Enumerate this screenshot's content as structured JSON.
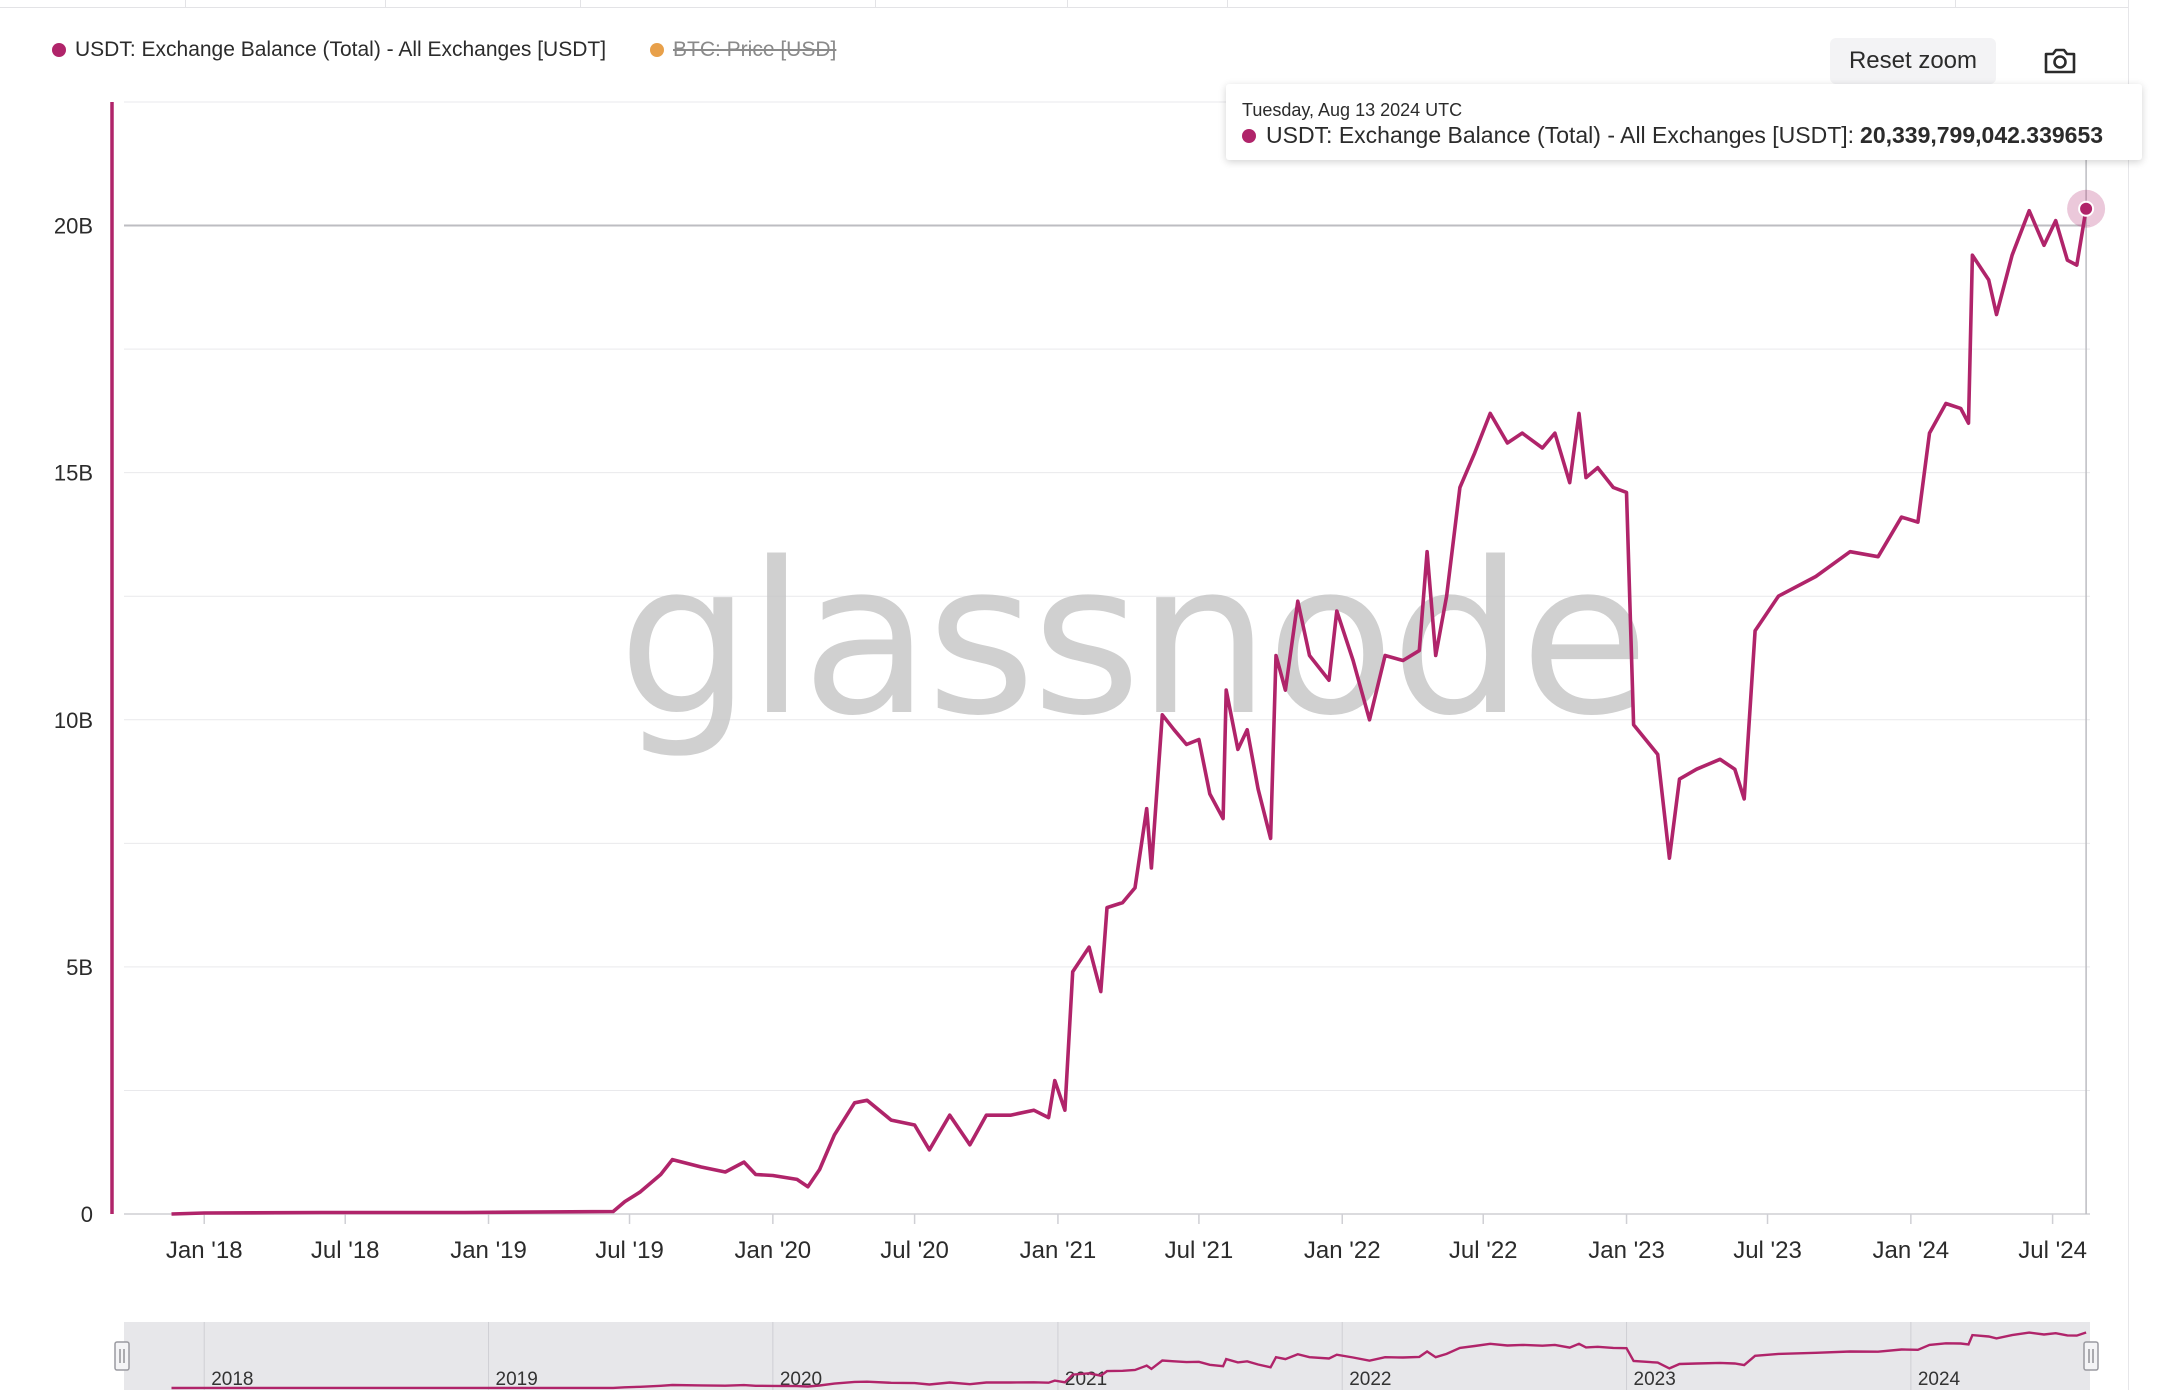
{
  "colors": {
    "usdt": "#b0246a",
    "btc": "#e8a04a",
    "grid": "#e9e9ec",
    "axis": "#cfcfd4",
    "navigator_bg": "#e7e7ea"
  },
  "legend": {
    "series": [
      {
        "name": "USDT: Exchange Balance (Total) - All Exchanges [USDT]",
        "active": true
      },
      {
        "name": "BTC: Price [USD]",
        "active": false
      }
    ]
  },
  "toolbar": {
    "reset_zoom_label": "Reset zoom",
    "camera_icon": "camera-icon"
  },
  "watermark": "glassnode",
  "tooltip": {
    "date": "Tuesday, Aug 13 2024 UTC",
    "series_label": "USDT: Exchange Balance (Total) - All Exchanges [USDT]:",
    "value": "20,339,799,042.339653"
  },
  "chart_data": {
    "type": "line",
    "series": [
      {
        "name": "USDT: Exchange Balance (Total) - All Exchanges [USDT]",
        "points": [
          [
            "2017-11-20",
            0.0
          ],
          [
            "2018-01-01",
            0.02
          ],
          [
            "2018-06-01",
            0.03
          ],
          [
            "2018-12-01",
            0.03
          ],
          [
            "2019-06-10",
            0.05
          ],
          [
            "2019-06-25",
            0.25
          ],
          [
            "2019-07-15",
            0.45
          ],
          [
            "2019-08-10",
            0.8
          ],
          [
            "2019-08-25",
            1.1
          ],
          [
            "2019-10-01",
            0.95
          ],
          [
            "2019-11-01",
            0.85
          ],
          [
            "2019-11-25",
            1.05
          ],
          [
            "2019-12-10",
            0.8
          ],
          [
            "2020-01-01",
            0.78
          ],
          [
            "2020-02-01",
            0.7
          ],
          [
            "2020-02-15",
            0.55
          ],
          [
            "2020-03-01",
            0.9
          ],
          [
            "2020-03-20",
            1.6
          ],
          [
            "2020-04-15",
            2.25
          ],
          [
            "2020-05-01",
            2.3
          ],
          [
            "2020-06-01",
            1.9
          ],
          [
            "2020-07-01",
            1.8
          ],
          [
            "2020-07-20",
            1.3
          ],
          [
            "2020-08-15",
            2.0
          ],
          [
            "2020-09-10",
            1.4
          ],
          [
            "2020-10-01",
            2.0
          ],
          [
            "2020-11-01",
            2.0
          ],
          [
            "2020-12-01",
            2.1
          ],
          [
            "2020-12-20",
            1.95
          ],
          [
            "2020-12-28",
            2.7
          ],
          [
            "2021-01-10",
            2.1
          ],
          [
            "2021-01-20",
            4.9
          ],
          [
            "2021-02-10",
            5.4
          ],
          [
            "2021-02-25",
            4.5
          ],
          [
            "2021-03-05",
            6.2
          ],
          [
            "2021-03-25",
            6.3
          ],
          [
            "2021-04-10",
            6.6
          ],
          [
            "2021-04-25",
            8.2
          ],
          [
            "2021-05-01",
            7.0
          ],
          [
            "2021-05-15",
            10.1
          ],
          [
            "2021-05-30",
            9.8
          ],
          [
            "2021-06-15",
            9.5
          ],
          [
            "2021-07-01",
            9.6
          ],
          [
            "2021-07-15",
            8.5
          ],
          [
            "2021-08-01",
            8.0
          ],
          [
            "2021-08-05",
            10.6
          ],
          [
            "2021-08-20",
            9.4
          ],
          [
            "2021-09-01",
            9.8
          ],
          [
            "2021-09-15",
            8.6
          ],
          [
            "2021-10-01",
            7.6
          ],
          [
            "2021-10-08",
            11.3
          ],
          [
            "2021-10-20",
            10.6
          ],
          [
            "2021-11-05",
            12.4
          ],
          [
            "2021-11-20",
            11.3
          ],
          [
            "2021-12-15",
            10.8
          ],
          [
            "2021-12-25",
            12.2
          ],
          [
            "2022-01-15",
            11.2
          ],
          [
            "2022-02-05",
            10.0
          ],
          [
            "2022-02-25",
            11.3
          ],
          [
            "2022-03-20",
            11.2
          ],
          [
            "2022-04-10",
            11.4
          ],
          [
            "2022-04-20",
            13.4
          ],
          [
            "2022-05-01",
            11.3
          ],
          [
            "2022-05-15",
            12.5
          ],
          [
            "2022-06-01",
            14.7
          ],
          [
            "2022-06-20",
            15.4
          ],
          [
            "2022-07-10",
            16.2
          ],
          [
            "2022-08-01",
            15.6
          ],
          [
            "2022-08-20",
            15.8
          ],
          [
            "2022-09-15",
            15.5
          ],
          [
            "2022-10-01",
            15.8
          ],
          [
            "2022-10-20",
            14.8
          ],
          [
            "2022-11-01",
            16.2
          ],
          [
            "2022-11-10",
            14.9
          ],
          [
            "2022-11-25",
            15.1
          ],
          [
            "2022-12-15",
            14.7
          ],
          [
            "2023-01-01",
            14.6
          ],
          [
            "2023-01-10",
            9.9
          ],
          [
            "2023-02-10",
            9.3
          ],
          [
            "2023-02-25",
            7.2
          ],
          [
            "2023-03-10",
            8.8
          ],
          [
            "2023-04-01",
            9.0
          ],
          [
            "2023-05-01",
            9.2
          ],
          [
            "2023-05-20",
            9.0
          ],
          [
            "2023-06-01",
            8.4
          ],
          [
            "2023-06-15",
            11.8
          ],
          [
            "2023-07-15",
            12.5
          ],
          [
            "2023-09-01",
            12.9
          ],
          [
            "2023-10-15",
            13.4
          ],
          [
            "2023-11-20",
            13.3
          ],
          [
            "2023-12-20",
            14.1
          ],
          [
            "2024-01-10",
            14.0
          ],
          [
            "2024-01-25",
            15.8
          ],
          [
            "2024-02-15",
            16.4
          ],
          [
            "2024-03-05",
            16.3
          ],
          [
            "2024-03-15",
            16.0
          ],
          [
            "2024-03-20",
            19.4
          ],
          [
            "2024-04-10",
            18.9
          ],
          [
            "2024-04-20",
            18.2
          ],
          [
            "2024-05-10",
            19.4
          ],
          [
            "2024-06-01",
            20.3
          ],
          [
            "2024-06-20",
            19.6
          ],
          [
            "2024-07-05",
            20.1
          ],
          [
            "2024-07-20",
            19.3
          ],
          [
            "2024-08-01",
            19.2
          ],
          [
            "2024-08-13",
            20.34
          ]
        ]
      }
    ],
    "x_range": [
      "2017-09-20",
      "2024-08-18"
    ],
    "y_range": [
      0,
      22.5
    ],
    "y_unit": "B",
    "y_ticks": [
      0,
      5,
      10,
      15,
      20
    ],
    "y_tick_labels": [
      "0",
      "5B",
      "10B",
      "15B",
      "20B"
    ],
    "x_ticks": [
      "2018-01-01",
      "2018-07-01",
      "2019-01-01",
      "2019-07-01",
      "2020-01-01",
      "2020-07-01",
      "2021-01-01",
      "2021-07-01",
      "2022-01-01",
      "2022-07-01",
      "2023-01-01",
      "2023-07-01",
      "2024-01-01",
      "2024-07-01"
    ],
    "x_tick_labels": [
      "Jan '18",
      "Jul '18",
      "Jan '19",
      "Jul '19",
      "Jan '20",
      "Jul '20",
      "Jan '21",
      "Jul '21",
      "Jan '22",
      "Jul '22",
      "Jan '23",
      "Jul '23",
      "Jan '24",
      "Jul '24"
    ],
    "navigator_ticks": [
      "2018-01-01",
      "2019-01-01",
      "2020-01-01",
      "2021-01-01",
      "2022-01-01",
      "2023-01-01",
      "2024-01-01"
    ],
    "navigator_labels": [
      "2018",
      "2019",
      "2020",
      "2021",
      "2022",
      "2023",
      "2024"
    ],
    "crosshair": {
      "date": "2024-08-13",
      "value": 20.34
    },
    "grid": true,
    "legend_position": "top-left"
  }
}
